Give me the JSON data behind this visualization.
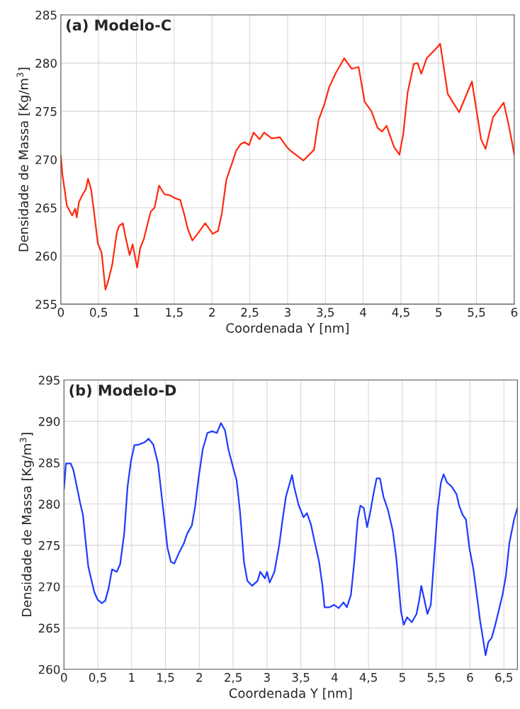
{
  "chart_data": [
    {
      "type": "line",
      "title": "(a) Modelo-C",
      "xlabel": "Coordenada Y [nm]",
      "ylabel": "Densidade de Massa [Kg/m$^{3}$]",
      "xlim": [
        0,
        6
      ],
      "ylim": [
        255,
        285
      ],
      "xticks": [
        0,
        {
          "value": 0.5,
          "label": "0,5"
        },
        1,
        {
          "value": 1.5,
          "label": "1,5"
        },
        2,
        {
          "value": 2.5,
          "label": "2,5"
        },
        3,
        {
          "value": 3.5,
          "label": "3,5"
        },
        4,
        {
          "value": 4.5,
          "label": "4,5"
        },
        5,
        {
          "value": 5.5,
          "label": "5,5"
        },
        6
      ],
      "yticks": [
        255,
        260,
        265,
        270,
        275,
        280,
        285
      ],
      "grid": true,
      "marker": "none",
      "line_style": "solid",
      "series": [
        {
          "color": "#ff2a0f",
          "x": [
            0,
            0.02,
            0.08,
            0.15,
            0.19,
            0.21,
            0.24,
            0.29,
            0.33,
            0.36,
            0.4,
            0.44,
            0.49,
            0.54,
            0.59,
            0.63,
            0.68,
            0.74,
            0.77,
            0.82,
            0.86,
            0.91,
            0.95,
            1.01,
            1.05,
            1.1,
            1.15,
            1.19,
            1.24,
            1.3,
            1.37,
            1.44,
            1.51,
            1.58,
            1.63,
            1.68,
            1.74,
            1.82,
            1.91,
            2.01,
            2.08,
            2.13,
            2.19,
            2.26,
            2.32,
            2.38,
            2.43,
            2.49,
            2.55,
            2.63,
            2.69,
            2.79,
            2.9,
            2.99,
            3.04,
            3.21,
            3.35,
            3.41,
            3.49,
            3.55,
            3.64,
            3.75,
            3.85,
            3.94,
            4.02,
            4.11,
            4.19,
            4.25,
            4.31,
            4.41,
            4.48,
            4.53,
            4.59,
            4.67,
            4.72,
            4.77,
            4.84,
            4.94,
            5.02,
            5.12,
            5.27,
            5.44,
            5.56,
            5.62,
            5.72,
            5.86,
            5.92,
            5.97,
            6.0
          ],
          "values": [
            270.4,
            268.5,
            265.2,
            264.2,
            264.9,
            264.0,
            265.6,
            266.4,
            266.9,
            268.0,
            266.9,
            264.5,
            261.3,
            260.3,
            256.5,
            257.5,
            259.1,
            262.4,
            263.1,
            263.4,
            261.8,
            260.1,
            261.2,
            258.8,
            260.8,
            261.8,
            263.4,
            264.6,
            265.0,
            267.3,
            266.4,
            266.3,
            266.0,
            265.8,
            264.4,
            262.8,
            261.6,
            262.4,
            263.4,
            262.3,
            262.6,
            264.4,
            267.9,
            269.5,
            270.9,
            271.6,
            271.8,
            271.5,
            272.8,
            272.1,
            272.8,
            272.2,
            272.3,
            271.3,
            270.9,
            269.9,
            271.0,
            274.1,
            275.8,
            277.5,
            279.0,
            280.5,
            279.4,
            279.6,
            276.0,
            275.0,
            273.3,
            272.9,
            273.5,
            271.3,
            270.5,
            272.6,
            277.0,
            279.9,
            280.0,
            278.9,
            280.5,
            281.3,
            282.0,
            276.8,
            274.9,
            278.1,
            272.1,
            271.1,
            274.4,
            275.9,
            273.8,
            271.8,
            270.5
          ]
        }
      ]
    },
    {
      "type": "line",
      "title": "(b) Modelo-D",
      "xlabel": "Coordenada Y [nm]",
      "ylabel": "Densidade de Massa [Kg/m$^{3}$]",
      "xlim": [
        0,
        6.7
      ],
      "ylim": [
        260,
        295
      ],
      "xticks": [
        0,
        {
          "value": 0.5,
          "label": "0,5"
        },
        1,
        {
          "value": 1.5,
          "label": "1,5"
        },
        2,
        {
          "value": 2.5,
          "label": "2,5"
        },
        3,
        {
          "value": 3.5,
          "label": "3,5"
        },
        4,
        {
          "value": 4.5,
          "label": "4,5"
        },
        5,
        {
          "value": 5.5,
          "label": "5,5"
        },
        6,
        {
          "value": 6.5,
          "label": "6,5"
        }
      ],
      "yticks": [
        260,
        265,
        270,
        275,
        280,
        285,
        290,
        295
      ],
      "grid": true,
      "marker": "none",
      "line_style": "solid",
      "series": [
        {
          "color": "#1f3cff",
          "x": [
            0,
            0.03,
            0.1,
            0.14,
            0.19,
            0.24,
            0.28,
            0.33,
            0.36,
            0.4,
            0.45,
            0.5,
            0.56,
            0.61,
            0.66,
            0.71,
            0.78,
            0.83,
            0.89,
            0.94,
            0.99,
            1.04,
            1.11,
            1.2,
            1.25,
            1.32,
            1.39,
            1.46,
            1.53,
            1.58,
            1.63,
            1.7,
            1.77,
            1.82,
            1.89,
            1.94,
            1.99,
            2.05,
            2.12,
            2.19,
            2.26,
            2.32,
            2.38,
            2.43,
            2.5,
            2.55,
            2.6,
            2.66,
            2.71,
            2.78,
            2.86,
            2.9,
            2.97,
            3.0,
            3.04,
            3.11,
            3.18,
            3.23,
            3.28,
            3.37,
            3.4,
            3.47,
            3.54,
            3.59,
            3.65,
            3.71,
            3.77,
            3.82,
            3.85,
            3.92,
            3.99,
            4.06,
            4.13,
            4.18,
            4.24,
            4.29,
            4.34,
            4.38,
            4.43,
            4.48,
            4.53,
            4.58,
            4.62,
            4.67,
            4.72,
            4.79,
            4.86,
            4.91,
            4.95,
            4.98,
            5.02,
            5.07,
            5.14,
            5.21,
            5.25,
            5.28,
            5.31,
            5.37,
            5.42,
            5.47,
            5.52,
            5.57,
            5.61,
            5.66,
            5.73,
            5.8,
            5.84,
            5.89,
            5.94,
            5.99,
            6.05,
            6.1,
            6.15,
            6.19,
            6.23,
            6.27,
            6.32,
            6.38,
            6.43,
            6.48,
            6.53,
            6.58,
            6.65,
            6.7
          ],
          "values": [
            281.8,
            284.9,
            284.9,
            284.1,
            282.1,
            280.1,
            278.7,
            274.7,
            272.4,
            271.0,
            269.3,
            268.4,
            268.0,
            268.3,
            269.8,
            272.1,
            271.8,
            272.7,
            276.4,
            282.1,
            285.2,
            287.1,
            287.2,
            287.5,
            287.9,
            287.2,
            284.9,
            279.8,
            274.7,
            273.0,
            272.8,
            274.1,
            275.2,
            276.4,
            277.4,
            279.8,
            283.2,
            286.6,
            288.6,
            288.8,
            288.6,
            289.8,
            288.9,
            286.6,
            284.4,
            282.9,
            279.2,
            273.0,
            270.7,
            270.1,
            270.7,
            271.8,
            271.0,
            271.8,
            270.5,
            271.8,
            275.0,
            278.1,
            280.9,
            283.5,
            282.1,
            279.8,
            278.4,
            278.9,
            277.5,
            275.2,
            273.0,
            270.1,
            267.5,
            267.5,
            267.8,
            267.4,
            268.1,
            267.5,
            269.0,
            273.0,
            278.1,
            279.8,
            279.5,
            277.2,
            279.2,
            281.5,
            283.1,
            283.1,
            280.9,
            279.2,
            276.7,
            273.5,
            269.8,
            267.0,
            265.4,
            266.3,
            265.7,
            266.7,
            268.4,
            270.1,
            269.0,
            266.7,
            267.8,
            273.5,
            279.2,
            282.6,
            283.6,
            282.6,
            282.1,
            281.2,
            279.8,
            278.7,
            278.1,
            274.7,
            272.1,
            269.0,
            265.8,
            263.8,
            261.7,
            263.3,
            263.8,
            265.6,
            267.3,
            269.0,
            271.3,
            275.2,
            278.1,
            279.5
          ]
        }
      ]
    }
  ]
}
